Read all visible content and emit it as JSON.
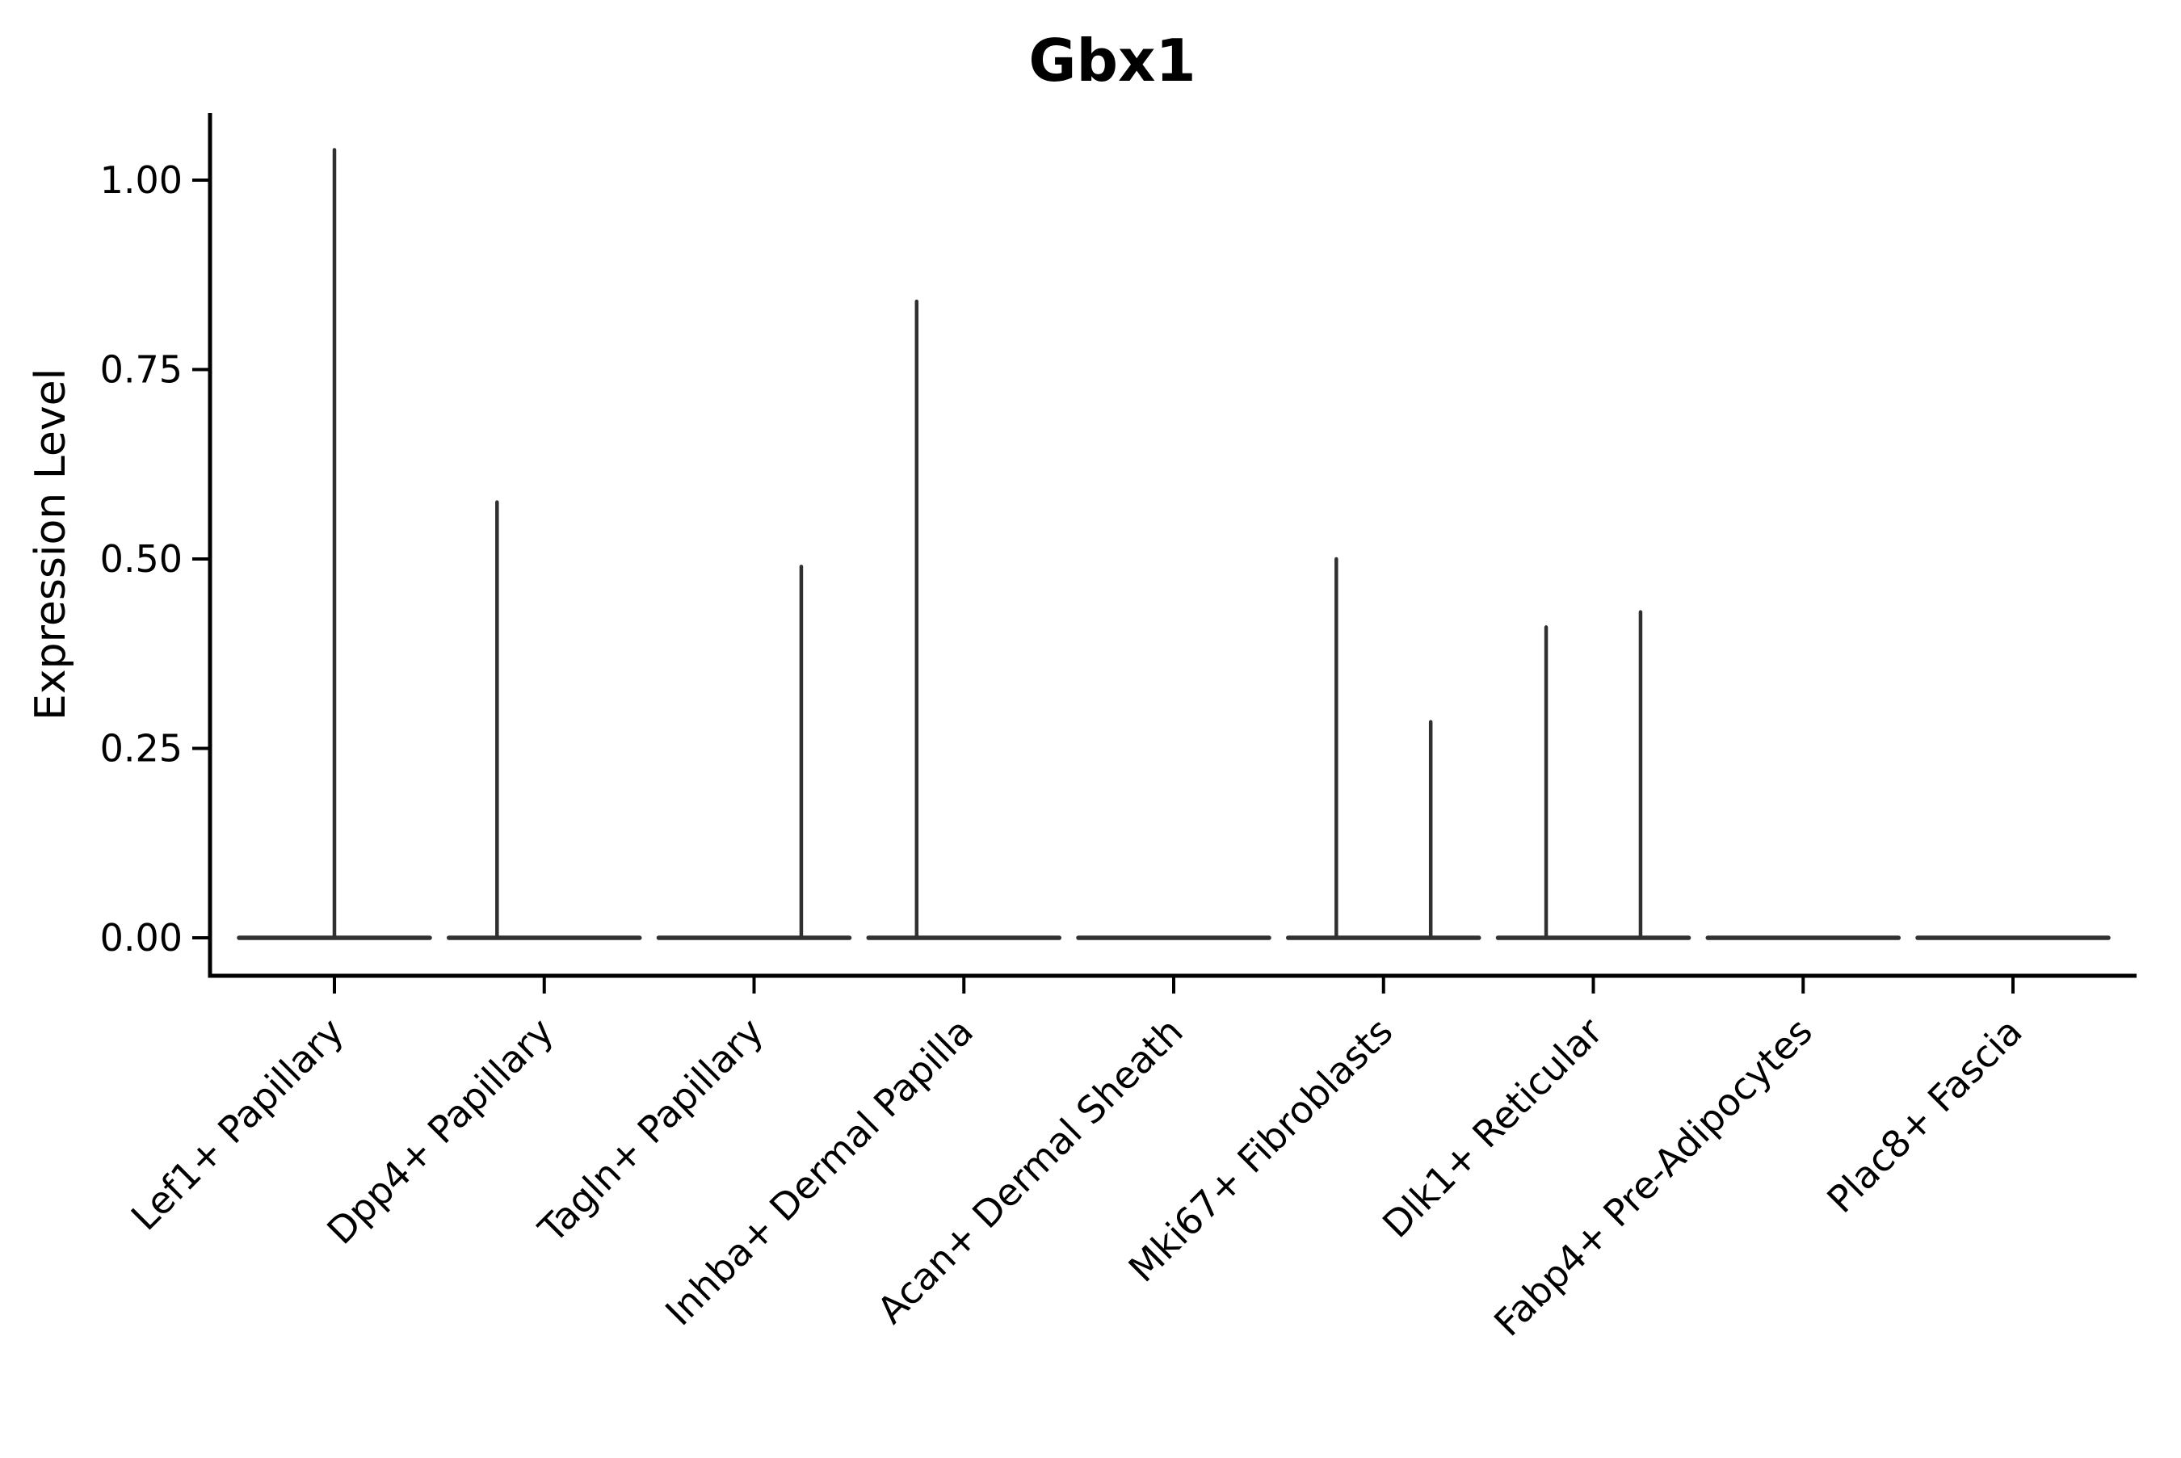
{
  "title": "Gbx1",
  "chart_data": {
    "type": "violin",
    "title": "Gbx1",
    "xlabel": "",
    "ylabel": "Expression Level",
    "ylim": [
      0,
      1.09
    ],
    "y_ticks": [
      0,
      0.25,
      0.5,
      0.75,
      1.0
    ],
    "y_tick_labels": [
      "0.00",
      "0.25",
      "0.50",
      "0.75",
      "1.00"
    ],
    "grid": false,
    "legend_position": "none",
    "categories": [
      "Lef1+ Papillary",
      "Dpp4+ Papillary",
      "Tagln+ Papillary",
      "Inhba+ Dermal Papilla",
      "Acan+ Dermal Sheath",
      "Mki67+ Fibroblasts",
      "Dlk1+ Reticular",
      "Fabp4+ Pre-Adipocytes",
      "Plac8+ Fascia"
    ],
    "violins": [
      {
        "category": "Lef1+ Papillary",
        "baseline_value": 0.0,
        "spikes": [
          {
            "offset": 0.0,
            "peak": 1.04
          }
        ]
      },
      {
        "category": "Dpp4+ Papillary",
        "baseline_value": 0.0,
        "spikes": [
          {
            "offset": -0.225,
            "peak": 0.575
          }
        ]
      },
      {
        "category": "Tagln+ Papillary",
        "baseline_value": 0.0,
        "spikes": [
          {
            "offset": 0.225,
            "peak": 0.49
          }
        ]
      },
      {
        "category": "Inhba+ Dermal Papilla",
        "baseline_value": 0.0,
        "spikes": [
          {
            "offset": -0.225,
            "peak": 0.84
          }
        ]
      },
      {
        "category": "Acan+ Dermal Sheath",
        "baseline_value": 0.0,
        "spikes": []
      },
      {
        "category": "Mki67+ Fibroblasts",
        "baseline_value": 0.0,
        "spikes": [
          {
            "offset": -0.225,
            "peak": 0.5
          },
          {
            "offset": 0.225,
            "peak": 0.285
          }
        ]
      },
      {
        "category": "Dlk1+ Reticular",
        "baseline_value": 0.0,
        "spikes": [
          {
            "offset": -0.225,
            "peak": 0.41
          },
          {
            "offset": 0.225,
            "peak": 0.43
          }
        ]
      },
      {
        "category": "Fabp4+ Pre-Adipocytes",
        "baseline_value": 0.0,
        "spikes": []
      },
      {
        "category": "Plac8+ Fascia",
        "baseline_value": 0.0,
        "spikes": []
      }
    ],
    "colors": {
      "violin_line": "#303030",
      "axis": "#000000",
      "background": "#ffffff"
    }
  }
}
